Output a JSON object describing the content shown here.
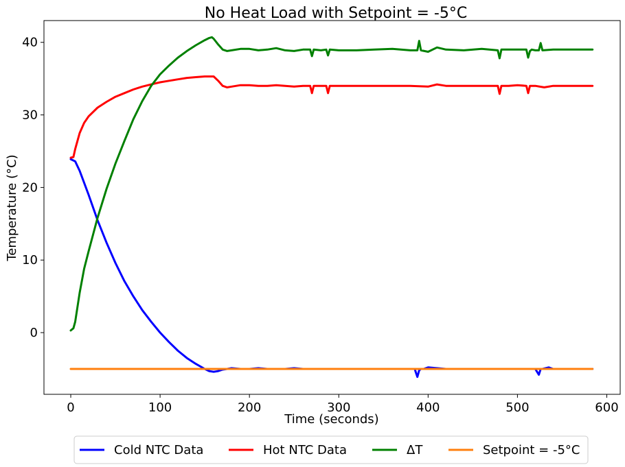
{
  "chart_data": {
    "type": "line",
    "title": "No Heat Load with Setpoint = -5°C",
    "xlabel": "Time (seconds)",
    "ylabel": "Temperature (°C)",
    "xlim": [
      -30,
      615
    ],
    "ylim": [
      -8.5,
      43
    ],
    "xticks": [
      0,
      100,
      200,
      300,
      400,
      500,
      600
    ],
    "yticks": [
      0,
      10,
      20,
      30,
      40
    ],
    "grid": false,
    "legend_position": "bottom, outside plot",
    "series": [
      {
        "name": "Cold NTC Data",
        "color": "#0000ff",
        "x": [
          0,
          5,
          10,
          20,
          30,
          40,
          50,
          60,
          70,
          80,
          90,
          100,
          110,
          120,
          130,
          140,
          150,
          155,
          160,
          165,
          170,
          175,
          180,
          190,
          200,
          210,
          220,
          230,
          240,
          250,
          260,
          270,
          280,
          290,
          300,
          320,
          340,
          360,
          380,
          385,
          388,
          390,
          392,
          395,
          400,
          420,
          440,
          460,
          480,
          500,
          510,
          520,
          524,
          526,
          528,
          535,
          540,
          560,
          584
        ],
        "y": [
          23.9,
          23.6,
          22.3,
          19.0,
          15.5,
          12.4,
          9.6,
          7.1,
          5.0,
          3.1,
          1.5,
          0.0,
          -1.3,
          -2.5,
          -3.5,
          -4.3,
          -5.0,
          -5.3,
          -5.4,
          -5.3,
          -5.1,
          -5.0,
          -4.9,
          -5.0,
          -5.0,
          -4.9,
          -5.0,
          -5.0,
          -5.0,
          -4.9,
          -5.0,
          -5.0,
          -5.0,
          -5.0,
          -5.0,
          -5.0,
          -5.0,
          -5.0,
          -5.0,
          -5.0,
          -6.1,
          -5.2,
          -5.0,
          -5.0,
          -4.8,
          -5.0,
          -5.0,
          -5.0,
          -5.0,
          -5.0,
          -5.0,
          -5.0,
          -5.8,
          -5.0,
          -5.0,
          -4.8,
          -5.0,
          -5.0,
          -5.0
        ]
      },
      {
        "name": "Hot NTC Data",
        "color": "#ff0000",
        "x": [
          0,
          3,
          5,
          10,
          15,
          20,
          30,
          40,
          50,
          60,
          70,
          80,
          90,
          100,
          110,
          120,
          130,
          140,
          150,
          155,
          160,
          165,
          170,
          175,
          180,
          190,
          200,
          210,
          220,
          230,
          240,
          250,
          260,
          268,
          270,
          272,
          280,
          286,
          288,
          290,
          300,
          320,
          340,
          360,
          380,
          400,
          410,
          420,
          440,
          460,
          478,
          480,
          482,
          490,
          500,
          510,
          512,
          514,
          516,
          520,
          530,
          540,
          560,
          584
        ],
        "y": [
          24.1,
          24.2,
          25.3,
          27.5,
          28.9,
          29.8,
          31.0,
          31.8,
          32.5,
          33.0,
          33.5,
          33.9,
          34.2,
          34.5,
          34.7,
          34.9,
          35.1,
          35.2,
          35.3,
          35.3,
          35.3,
          34.7,
          34.0,
          33.8,
          33.9,
          34.1,
          34.1,
          34.0,
          34.0,
          34.1,
          34.0,
          33.9,
          34.0,
          34.0,
          33.0,
          34.0,
          34.0,
          34.0,
          33.0,
          34.0,
          34.0,
          34.0,
          34.0,
          34.0,
          34.0,
          33.9,
          34.2,
          34.0,
          34.0,
          34.0,
          34.0,
          32.9,
          34.0,
          34.0,
          34.1,
          34.0,
          33.0,
          34.0,
          34.0,
          34.0,
          33.8,
          34.0,
          34.0,
          34.0
        ]
      },
      {
        "name": "ΔT",
        "color": "#008000",
        "x": [
          0,
          3,
          5,
          10,
          15,
          20,
          30,
          40,
          50,
          60,
          70,
          80,
          90,
          100,
          110,
          120,
          130,
          140,
          150,
          155,
          158,
          160,
          165,
          170,
          175,
          180,
          190,
          200,
          210,
          220,
          230,
          240,
          250,
          260,
          268,
          270,
          272,
          280,
          286,
          288,
          290,
          300,
          320,
          340,
          360,
          380,
          388,
          390,
          392,
          400,
          410,
          420,
          440,
          460,
          478,
          480,
          482,
          490,
          500,
          510,
          512,
          514,
          516,
          520,
          524,
          526,
          528,
          540,
          560,
          584
        ],
        "y": [
          0.3,
          0.6,
          1.5,
          5.5,
          8.8,
          11.2,
          15.8,
          19.8,
          23.3,
          26.4,
          29.4,
          31.9,
          34.0,
          35.6,
          36.8,
          37.9,
          38.8,
          39.6,
          40.3,
          40.6,
          40.7,
          40.5,
          39.7,
          39.0,
          38.8,
          38.9,
          39.1,
          39.1,
          38.9,
          39.0,
          39.2,
          38.9,
          38.8,
          39.0,
          39.0,
          38.1,
          39.0,
          38.9,
          39.0,
          38.2,
          39.0,
          38.9,
          38.9,
          39.0,
          39.1,
          38.9,
          38.9,
          40.2,
          38.9,
          38.7,
          39.3,
          39.0,
          38.9,
          39.1,
          38.9,
          37.8,
          39.0,
          39.0,
          39.0,
          39.0,
          37.9,
          38.8,
          39.0,
          38.9,
          38.9,
          39.9,
          38.9,
          39.0,
          39.0,
          39.0
        ]
      },
      {
        "name": "Setpoint = -5°C",
        "color": "#ff7f0e",
        "x": [
          0,
          584
        ],
        "y": [
          -5.0,
          -5.0
        ]
      }
    ]
  }
}
